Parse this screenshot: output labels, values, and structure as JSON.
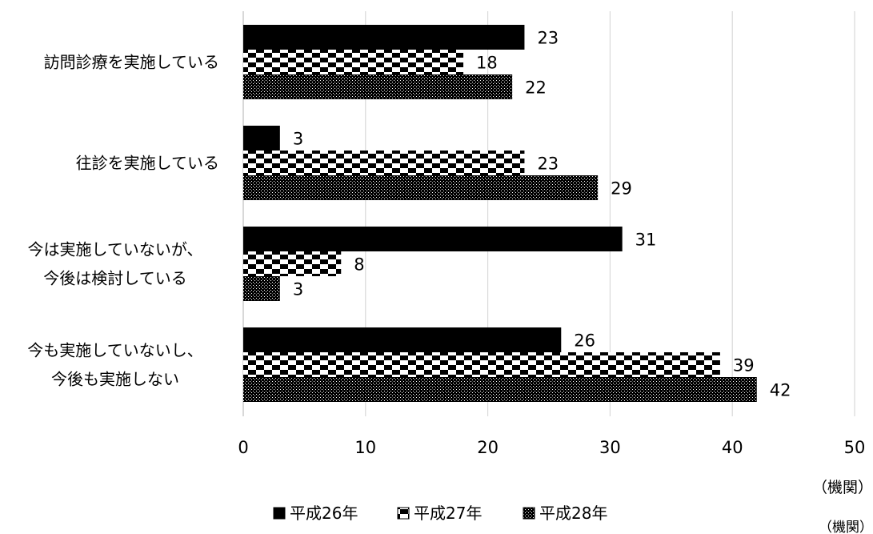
{
  "chart_data": {
    "type": "bar",
    "orientation": "horizontal",
    "categories": [
      [
        "訪問診療を実施している"
      ],
      [
        "往診を実施している"
      ],
      [
        "今は実施していないが、",
        "今後は検討している"
      ],
      [
        "今も実施していないし、",
        "今後も実施しない"
      ]
    ],
    "series": [
      {
        "name": "平成26年",
        "pattern": "solid",
        "color": "#000000",
        "values": [
          23,
          3,
          31,
          26
        ]
      },
      {
        "name": "平成27年",
        "pattern": "checker",
        "color": "#000000",
        "values": [
          18,
          23,
          8,
          39
        ]
      },
      {
        "name": "平成28年",
        "pattern": "dots",
        "color": "#000000",
        "values": [
          22,
          29,
          3,
          42
        ]
      }
    ],
    "xlim": [
      0,
      50
    ],
    "xticks": [
      0,
      10,
      20,
      30,
      40,
      50
    ],
    "xlabel": "（機関）",
    "unit_note": "（機関）",
    "grid": "vertical",
    "legend_position": "bottom"
  }
}
